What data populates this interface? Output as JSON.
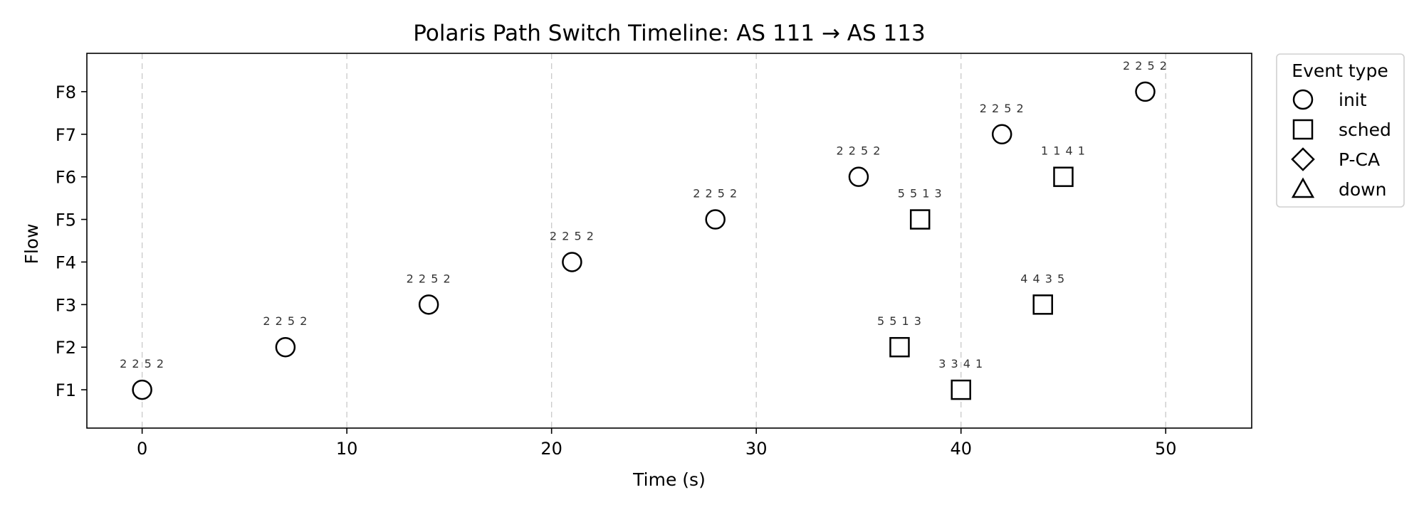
{
  "chart_data": {
    "type": "scatter",
    "title": "Polaris Path Switch Timeline: AS 111 → AS 113",
    "xlabel": "Time (s)",
    "ylabel": "Flow",
    "xlim": [
      -2.7,
      54.2
    ],
    "x_ticks": [
      0,
      10,
      20,
      30,
      40,
      50
    ],
    "categories": [
      "F1",
      "F2",
      "F3",
      "F4",
      "F5",
      "F6",
      "F7",
      "F8"
    ],
    "grid": "x-dashed",
    "legend": {
      "title": "Event type",
      "placement": "outside-right-top",
      "entries": [
        {
          "label": "init",
          "marker": "circle"
        },
        {
          "label": "sched",
          "marker": "square"
        },
        {
          "label": "P-CA",
          "marker": "diamond"
        },
        {
          "label": "down",
          "marker": "triangle"
        }
      ]
    },
    "series": [
      {
        "name": "init",
        "marker": "circle",
        "points": [
          {
            "x": 0,
            "flow": "F1",
            "label": "2 2 5 2"
          },
          {
            "x": 7,
            "flow": "F2",
            "label": "2 2 5 2"
          },
          {
            "x": 14,
            "flow": "F3",
            "label": "2 2 5 2"
          },
          {
            "x": 21,
            "flow": "F4",
            "label": "2 2 5 2"
          },
          {
            "x": 28,
            "flow": "F5",
            "label": "2 2 5 2"
          },
          {
            "x": 35,
            "flow": "F6",
            "label": "2 2 5 2"
          },
          {
            "x": 42,
            "flow": "F7",
            "label": "2 2 5 2"
          },
          {
            "x": 49,
            "flow": "F8",
            "label": "2 2 5 2"
          }
        ]
      },
      {
        "name": "sched",
        "marker": "square",
        "points": [
          {
            "x": 40,
            "flow": "F1",
            "label": "3 3 4 1"
          },
          {
            "x": 37,
            "flow": "F2",
            "label": "5 5 1 3"
          },
          {
            "x": 44,
            "flow": "F3",
            "label": "4 4 3 5"
          },
          {
            "x": 38,
            "flow": "F5",
            "label": "5 5 1 3"
          },
          {
            "x": 45,
            "flow": "F6",
            "label": "1 1 4 1"
          }
        ]
      },
      {
        "name": "P-CA",
        "marker": "diamond",
        "points": []
      },
      {
        "name": "down",
        "marker": "triangle",
        "points": []
      }
    ]
  }
}
